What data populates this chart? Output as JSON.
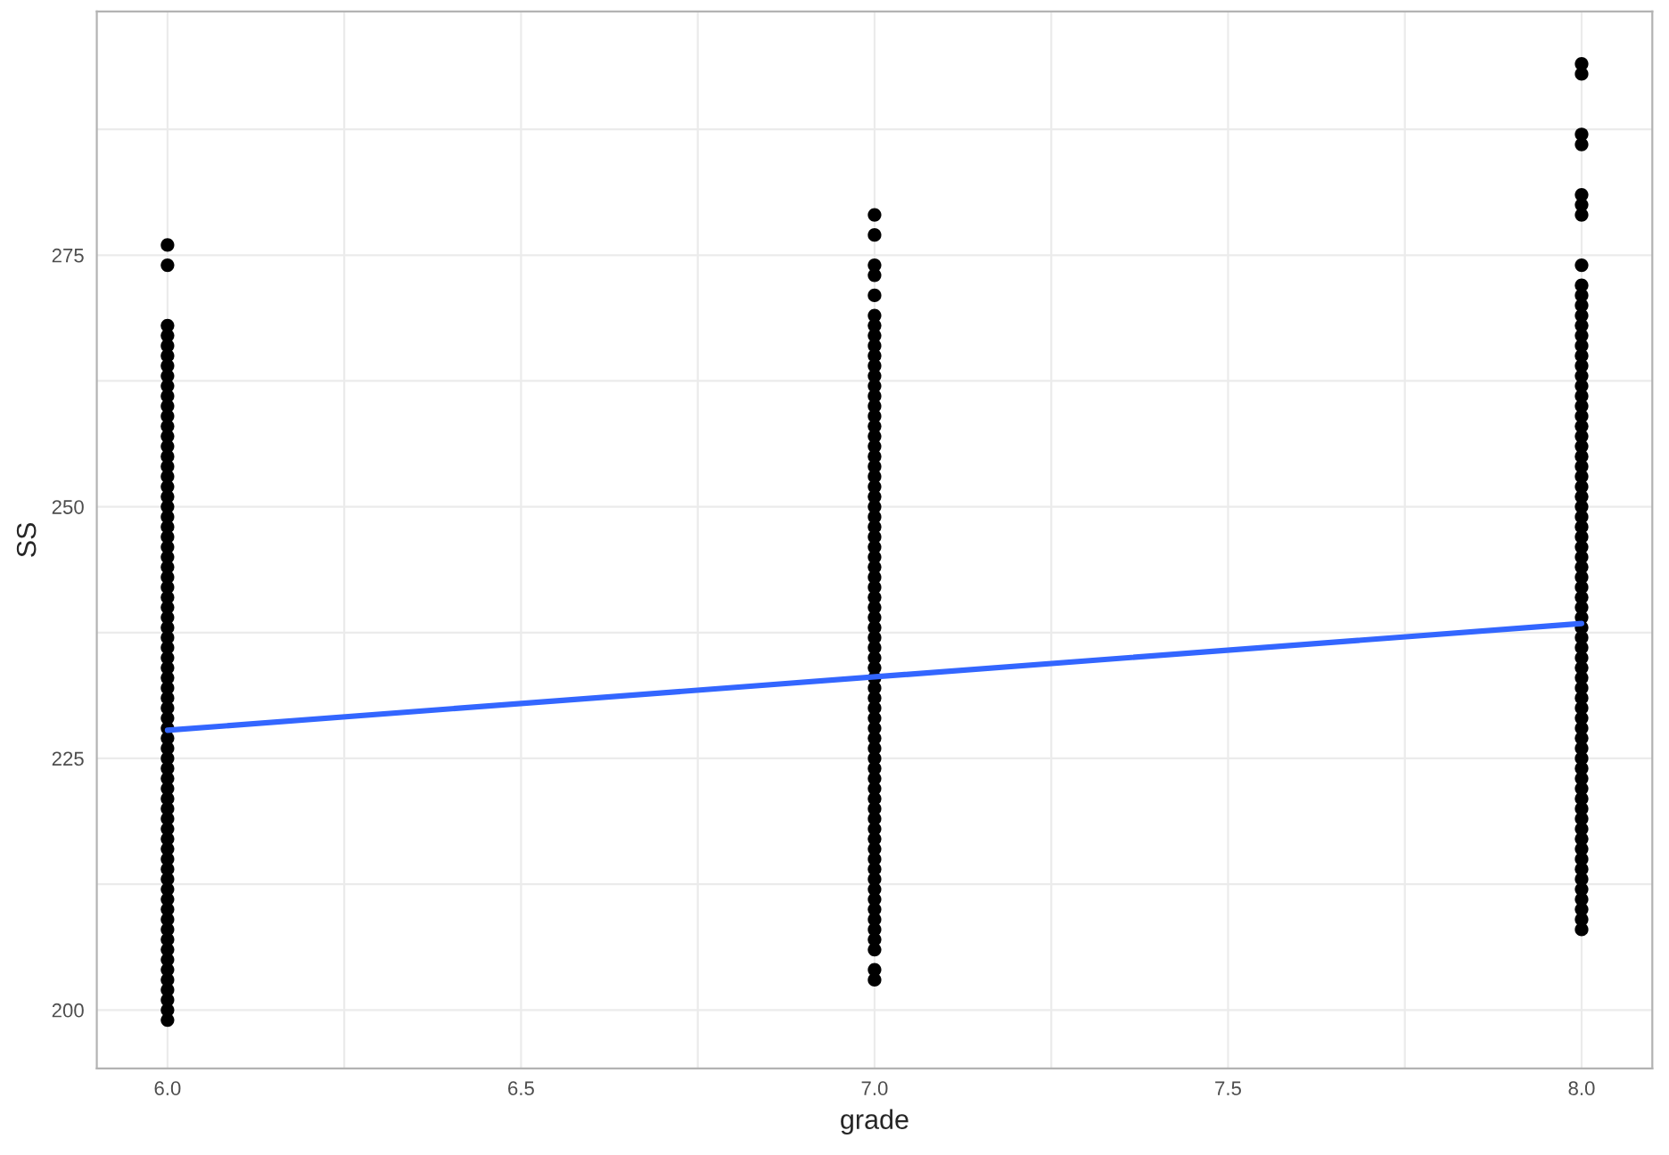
{
  "chart_data": {
    "type": "scatter",
    "xlabel": "grade",
    "ylabel": "SS",
    "xlim": [
      5.9,
      8.1
    ],
    "ylim": [
      194.2,
      299.2
    ],
    "xticks": [
      {
        "value": 6,
        "label": "6.0"
      },
      {
        "value": 6.25,
        "label": null
      },
      {
        "value": 6.5,
        "label": "6.5"
      },
      {
        "value": 6.75,
        "label": null
      },
      {
        "value": 7,
        "label": "7.0"
      },
      {
        "value": 7.25,
        "label": null
      },
      {
        "value": 7.5,
        "label": "7.5"
      },
      {
        "value": 7.75,
        "label": null
      },
      {
        "value": 8,
        "label": "8.0"
      }
    ],
    "yticks": [
      200,
      {
        "value": 212.5,
        "label": null
      },
      225,
      {
        "value": 237.5,
        "label": null
      },
      250,
      {
        "value": 262.5,
        "label": null
      },
      275,
      {
        "value": 287.5,
        "label": null
      }
    ],
    "grid": true,
    "marker": "circle",
    "series": [
      {
        "color": "#000000",
        "x": [
          6,
          6,
          6,
          6,
          6,
          6,
          6,
          6,
          6,
          6,
          6,
          6,
          6,
          6,
          6,
          6,
          6,
          6,
          6,
          6,
          6,
          6,
          6,
          6,
          6,
          6,
          6,
          6,
          6,
          6,
          6,
          6,
          6,
          6,
          6,
          6,
          6,
          6,
          6,
          6,
          6,
          6,
          6,
          6,
          6,
          6,
          6,
          6,
          6,
          6,
          6,
          6,
          6,
          6,
          6,
          6,
          6,
          6,
          6,
          6,
          6,
          6,
          6,
          6,
          6,
          6,
          6,
          6,
          6,
          6,
          6,
          6
        ],
        "values": [
          199,
          200,
          201,
          202,
          203,
          204,
          205,
          206,
          207,
          208,
          209,
          210,
          211,
          212,
          213,
          214,
          215,
          216,
          217,
          218,
          219,
          220,
          221,
          222,
          223,
          224,
          225,
          226,
          227,
          228,
          229,
          230,
          231,
          232,
          233,
          234,
          235,
          236,
          237,
          238,
          239,
          240,
          241,
          242,
          243,
          244,
          245,
          246,
          247,
          248,
          249,
          250,
          251,
          252,
          253,
          254,
          255,
          256,
          257,
          258,
          259,
          260,
          261,
          262,
          263,
          264,
          265,
          266,
          267,
          268,
          274,
          276
        ]
      },
      {
        "color": "#000000",
        "x": [
          7,
          7,
          7,
          7,
          7,
          7,
          7,
          7,
          7,
          7,
          7,
          7,
          7,
          7,
          7,
          7,
          7,
          7,
          7,
          7,
          7,
          7,
          7,
          7,
          7,
          7,
          7,
          7,
          7,
          7,
          7,
          7,
          7,
          7,
          7,
          7,
          7,
          7,
          7,
          7,
          7,
          7,
          7,
          7,
          7,
          7,
          7,
          7,
          7,
          7,
          7,
          7,
          7,
          7,
          7,
          7,
          7,
          7,
          7,
          7,
          7,
          7,
          7,
          7,
          7,
          7,
          7,
          7,
          7,
          7,
          7
        ],
        "values": [
          203,
          204,
          206,
          207,
          208,
          209,
          210,
          211,
          212,
          213,
          214,
          215,
          216,
          217,
          218,
          219,
          220,
          221,
          222,
          223,
          224,
          225,
          226,
          227,
          228,
          229,
          230,
          231,
          232,
          233,
          234,
          235,
          236,
          237,
          238,
          239,
          240,
          241,
          242,
          243,
          244,
          245,
          246,
          247,
          248,
          249,
          250,
          251,
          252,
          253,
          254,
          255,
          256,
          257,
          258,
          259,
          260,
          261,
          262,
          263,
          264,
          265,
          266,
          267,
          268,
          269,
          271,
          273,
          274,
          277,
          279
        ]
      },
      {
        "color": "#000000",
        "x": [
          8,
          8,
          8,
          8,
          8,
          8,
          8,
          8,
          8,
          8,
          8,
          8,
          8,
          8,
          8,
          8,
          8,
          8,
          8,
          8,
          8,
          8,
          8,
          8,
          8,
          8,
          8,
          8,
          8,
          8,
          8,
          8,
          8,
          8,
          8,
          8,
          8,
          8,
          8,
          8,
          8,
          8,
          8,
          8,
          8,
          8,
          8,
          8,
          8,
          8,
          8,
          8,
          8,
          8,
          8,
          8,
          8,
          8,
          8,
          8,
          8,
          8,
          8,
          8,
          8,
          8,
          8,
          8,
          8,
          8,
          8,
          8,
          8
        ],
        "values": [
          208,
          209,
          210,
          211,
          212,
          213,
          214,
          215,
          216,
          217,
          218,
          219,
          220,
          221,
          222,
          223,
          224,
          225,
          226,
          227,
          228,
          229,
          230,
          231,
          232,
          233,
          234,
          235,
          236,
          237,
          238,
          239,
          240,
          241,
          242,
          243,
          244,
          245,
          246,
          247,
          248,
          249,
          250,
          251,
          252,
          253,
          254,
          255,
          256,
          257,
          258,
          259,
          260,
          261,
          262,
          263,
          264,
          265,
          266,
          267,
          268,
          269,
          270,
          271,
          272,
          274,
          279,
          280,
          281,
          286,
          287,
          293,
          294
        ]
      },
      {
        "type": "line",
        "color": "#3366ff",
        "marker": "none",
        "x": [
          6,
          8
        ],
        "values": [
          227.8,
          238.4
        ]
      }
    ]
  }
}
